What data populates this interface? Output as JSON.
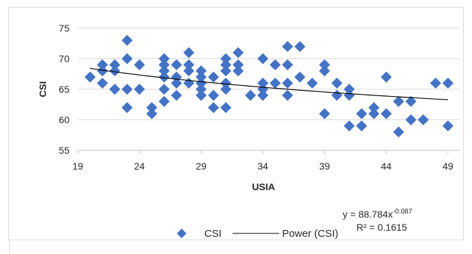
{
  "chart_data": {
    "type": "scatter",
    "xlabel": "USIA",
    "ylabel": "CSI",
    "xlim": [
      19,
      50
    ],
    "ylim": [
      55,
      75
    ],
    "xticks": [
      "19",
      "24",
      "29",
      "34",
      "39",
      "44",
      "49"
    ],
    "yticks": [
      "55",
      "60",
      "65",
      "70",
      "75"
    ],
    "marker_color": "#4472c4",
    "line_color": "#000000",
    "grid": "horizontal",
    "series": [
      {
        "name": "CSI",
        "points": [
          [
            20,
            67
          ],
          [
            21,
            69
          ],
          [
            21,
            68
          ],
          [
            21,
            66
          ],
          [
            22,
            69
          ],
          [
            22,
            68
          ],
          [
            22,
            65
          ],
          [
            23,
            73
          ],
          [
            23,
            70
          ],
          [
            23,
            65
          ],
          [
            23,
            62
          ],
          [
            24,
            69
          ],
          [
            24,
            65
          ],
          [
            25,
            62
          ],
          [
            25,
            61
          ],
          [
            26,
            70
          ],
          [
            26,
            69
          ],
          [
            26,
            68
          ],
          [
            26,
            67
          ],
          [
            26,
            65
          ],
          [
            26,
            63
          ],
          [
            27,
            69
          ],
          [
            27,
            67
          ],
          [
            27,
            66
          ],
          [
            27,
            64
          ],
          [
            28,
            71
          ],
          [
            28,
            69
          ],
          [
            28,
            68
          ],
          [
            28,
            66
          ],
          [
            29,
            68
          ],
          [
            29,
            67
          ],
          [
            29,
            66
          ],
          [
            29,
            65
          ],
          [
            29,
            64
          ],
          [
            30,
            67
          ],
          [
            30,
            64
          ],
          [
            30,
            62
          ],
          [
            31,
            70
          ],
          [
            31,
            69
          ],
          [
            31,
            68
          ],
          [
            31,
            66
          ],
          [
            31,
            65
          ],
          [
            31,
            62
          ],
          [
            32,
            71
          ],
          [
            32,
            69
          ],
          [
            32,
            68
          ],
          [
            33,
            64
          ],
          [
            34,
            70
          ],
          [
            34,
            66
          ],
          [
            34,
            65
          ],
          [
            34,
            64
          ],
          [
            35,
            69
          ],
          [
            35,
            66
          ],
          [
            36,
            72
          ],
          [
            36,
            69
          ],
          [
            36,
            66
          ],
          [
            36,
            64
          ],
          [
            37,
            72
          ],
          [
            37,
            67
          ],
          [
            38,
            66
          ],
          [
            39,
            69
          ],
          [
            39,
            68
          ],
          [
            39,
            61
          ],
          [
            40,
            66
          ],
          [
            40,
            64
          ],
          [
            41,
            65
          ],
          [
            41,
            64
          ],
          [
            41,
            59
          ],
          [
            42,
            61
          ],
          [
            42,
            59
          ],
          [
            43,
            62
          ],
          [
            43,
            61
          ],
          [
            44,
            67
          ],
          [
            44,
            61
          ],
          [
            45,
            63
          ],
          [
            45,
            58
          ],
          [
            46,
            63
          ],
          [
            46,
            60
          ],
          [
            47,
            60
          ],
          [
            48,
            66
          ],
          [
            49,
            66
          ],
          [
            49,
            59
          ]
        ]
      },
      {
        "name": "Power (CSI)",
        "kind": "trendline",
        "coefficient": 88.784,
        "exponent": -0.087
      }
    ],
    "legend": {
      "position": "bottom",
      "items": [
        {
          "label": "CSI",
          "icon": "diamond-marker"
        },
        {
          "label": "Power (CSI)",
          "icon": "line-marker"
        }
      ]
    },
    "equation": {
      "prefix": "y = 88.784x",
      "exponent": "-0.087",
      "r2_label": "R² = 0.1615"
    }
  }
}
